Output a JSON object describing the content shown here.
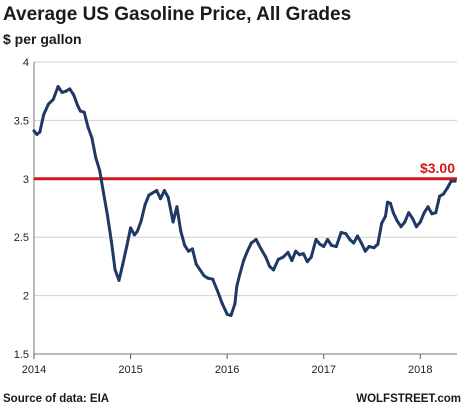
{
  "chart_data": {
    "type": "line",
    "title": "Average US Gasoline Price, All Grades",
    "subtitle": "$ per gallon",
    "ylim": [
      1.5,
      4
    ],
    "yticks": [
      1.5,
      2,
      2.5,
      3,
      3.5,
      4
    ],
    "xlim": [
      2014.0,
      2018.38
    ],
    "xticks": [
      "2014",
      "2015",
      "2016",
      "2017",
      "2018"
    ],
    "grid": "horizontal",
    "reference_line": {
      "value": 3.0,
      "label": "$3.00",
      "color": "#d0181c"
    },
    "line_color": "#1f3864",
    "x": [
      2014.0,
      2014.03,
      2014.06,
      2014.1,
      2014.15,
      2014.2,
      2014.25,
      2014.29,
      2014.33,
      2014.37,
      2014.41,
      2014.45,
      2014.48,
      2014.52,
      2014.56,
      2014.6,
      2014.64,
      2014.68,
      2014.72,
      2014.76,
      2014.8,
      2014.84,
      2014.88,
      2014.92,
      2014.96,
      2015.0,
      2015.04,
      2015.07,
      2015.11,
      2015.15,
      2015.19,
      2015.23,
      2015.27,
      2015.31,
      2015.35,
      2015.39,
      2015.44,
      2015.48,
      2015.52,
      2015.56,
      2015.6,
      2015.64,
      2015.68,
      2015.72,
      2015.76,
      2015.8,
      2015.85,
      2015.9,
      2015.95,
      2016.0,
      2016.04,
      2016.08,
      2016.1,
      2016.13,
      2016.17,
      2016.21,
      2016.25,
      2016.3,
      2016.35,
      2016.4,
      2016.44,
      2016.48,
      2016.53,
      2016.58,
      2016.63,
      2016.67,
      2016.71,
      2016.75,
      2016.79,
      2016.83,
      2016.87,
      2016.92,
      2016.96,
      2017.0,
      2017.04,
      2017.08,
      2017.13,
      2017.18,
      2017.23,
      2017.27,
      2017.31,
      2017.35,
      2017.39,
      2017.43,
      2017.47,
      2017.52,
      2017.56,
      2017.6,
      2017.64,
      2017.66,
      2017.69,
      2017.72,
      2017.76,
      2017.8,
      2017.84,
      2017.88,
      2017.92,
      2017.96,
      2018.0,
      2018.04,
      2018.08,
      2018.12,
      2018.16,
      2018.2,
      2018.24,
      2018.28,
      2018.32,
      2018.36
    ],
    "y": [
      3.41,
      3.38,
      3.4,
      3.55,
      3.64,
      3.68,
      3.79,
      3.74,
      3.75,
      3.77,
      3.72,
      3.63,
      3.58,
      3.57,
      3.44,
      3.35,
      3.18,
      3.07,
      2.88,
      2.69,
      2.47,
      2.22,
      2.13,
      2.27,
      2.42,
      2.58,
      2.52,
      2.55,
      2.64,
      2.78,
      2.86,
      2.88,
      2.9,
      2.83,
      2.9,
      2.84,
      2.63,
      2.76,
      2.55,
      2.43,
      2.38,
      2.4,
      2.27,
      2.22,
      2.17,
      2.15,
      2.14,
      2.04,
      1.93,
      1.84,
      1.83,
      1.93,
      2.08,
      2.18,
      2.3,
      2.38,
      2.45,
      2.48,
      2.4,
      2.33,
      2.25,
      2.22,
      2.31,
      2.33,
      2.37,
      2.3,
      2.38,
      2.35,
      2.36,
      2.29,
      2.33,
      2.48,
      2.44,
      2.42,
      2.48,
      2.43,
      2.42,
      2.54,
      2.53,
      2.48,
      2.45,
      2.51,
      2.45,
      2.38,
      2.42,
      2.41,
      2.44,
      2.62,
      2.68,
      2.8,
      2.79,
      2.71,
      2.64,
      2.59,
      2.63,
      2.71,
      2.66,
      2.59,
      2.63,
      2.71,
      2.76,
      2.7,
      2.71,
      2.85,
      2.87,
      2.92,
      2.98,
      2.98
    ]
  },
  "footer": {
    "source": "Source of data: EIA",
    "brand": "WOLFSTREET.com"
  }
}
